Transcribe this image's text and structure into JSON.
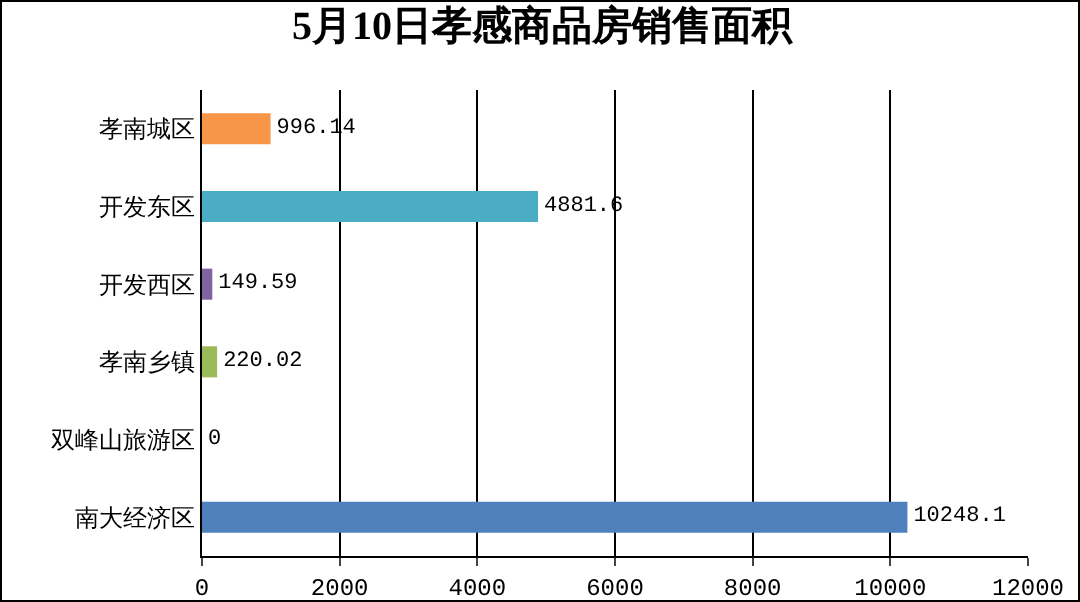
{
  "chart_data": {
    "type": "bar",
    "orientation": "horizontal",
    "title": "5月10日孝感商品房销售面积",
    "categories": [
      "孝南城区",
      "开发东区",
      "开发西区",
      "孝南乡镇",
      "双峰山旅游区",
      "南大经济区"
    ],
    "values": [
      996.14,
      4881.6,
      149.59,
      220.02,
      0,
      10248.1
    ],
    "colors": [
      "#f79646",
      "#4bacc6",
      "#8064a2",
      "#9bbb59",
      "#4f81bd",
      "#4f81bd"
    ],
    "xlim": [
      0,
      12000
    ],
    "xticks": [
      0,
      2000,
      4000,
      6000,
      8000,
      10000,
      12000
    ],
    "grid": "x",
    "data_labels": true
  }
}
